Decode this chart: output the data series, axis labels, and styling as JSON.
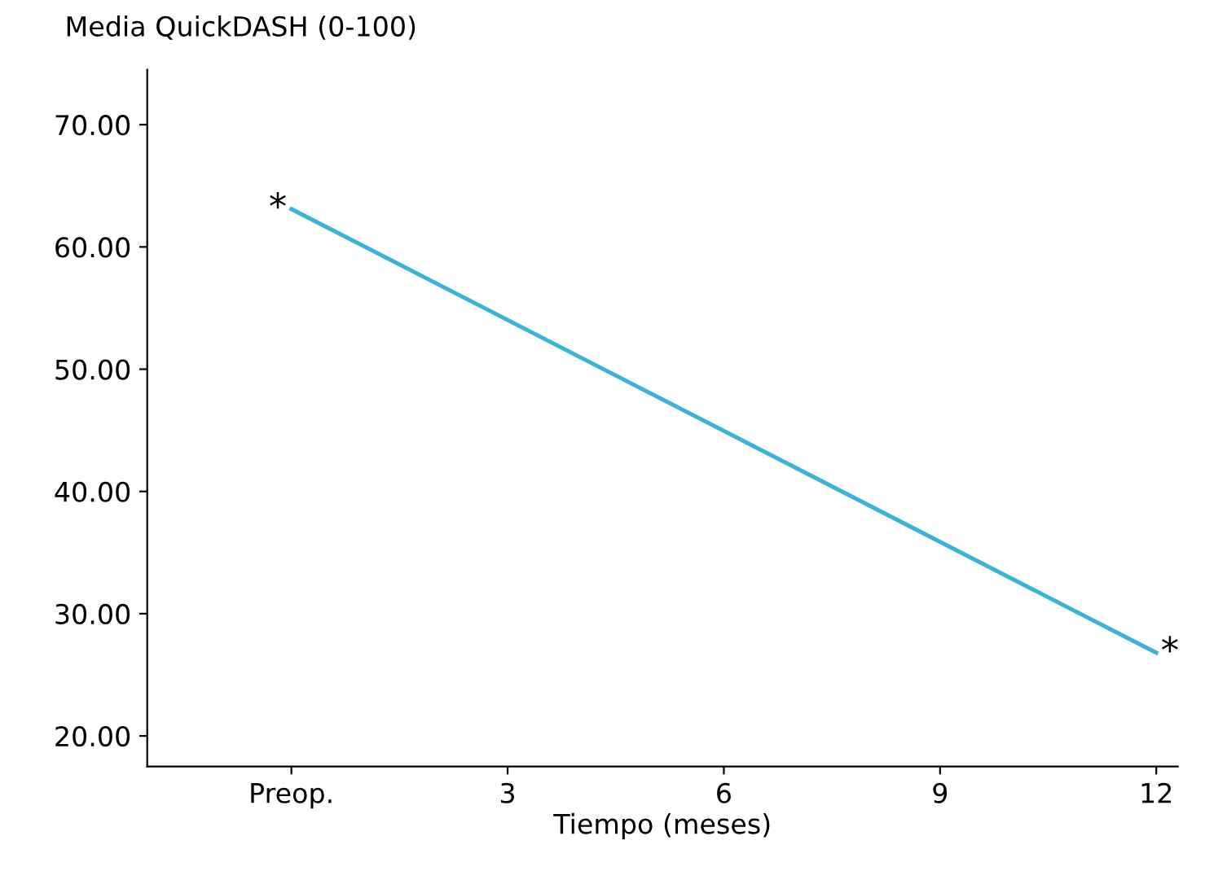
{
  "chart_data": {
    "type": "line",
    "ylabel": "Media QuickDASH (0-100)",
    "xlabel": "Tiempo (meses)",
    "x": [
      0,
      12
    ],
    "series": [
      {
        "color": "#3bb2d9",
        "values": [
          63.1,
          26.8
        ]
      }
    ],
    "xlim": [
      -2,
      12.3
    ],
    "xticks": [
      {
        "value": 0,
        "label": "Preop."
      },
      3,
      6,
      9,
      12
    ],
    "ylim": [
      17.5,
      74.5
    ],
    "yticks": [
      {
        "value": 20,
        "label": "20.00"
      },
      {
        "value": 30,
        "label": "30.00"
      },
      {
        "value": 40,
        "label": "40.00"
      },
      {
        "value": 50,
        "label": "50.00"
      },
      {
        "value": 60,
        "label": "60.00"
      },
      {
        "value": 70,
        "label": "70.00"
      }
    ],
    "annotations": [
      {
        "text": "*",
        "x": 0,
        "y": 63.1
      },
      {
        "text": "*",
        "x": 12,
        "y": 26.8
      }
    ],
    "grid": false,
    "legend": false
  }
}
